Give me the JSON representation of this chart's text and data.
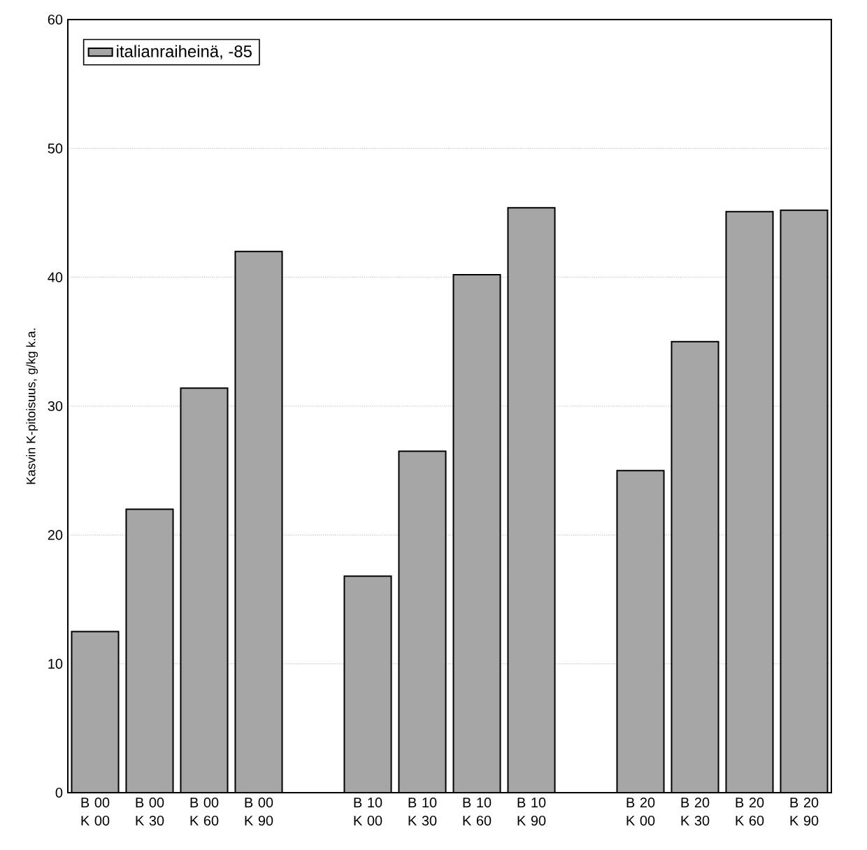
{
  "chart_data": {
    "type": "bar",
    "ylabel": "Kasvin K-pitoisuus, g/kg k.a.",
    "categories": [
      "B 00 K 00",
      "B 00 K 30",
      "B 00 K 60",
      "B 00 K 90",
      null,
      "B 10 K 00",
      "B 10 K 30",
      "B 10 K 60",
      "B 10 K 90",
      null,
      "B 20 K 00",
      "B 20 K 30",
      "B 20 K 60",
      "B 20 K 90"
    ],
    "series": [
      {
        "name": "italianraiheinä, -85",
        "color": "#a6a6a6",
        "values": [
          12.5,
          22.0,
          31.4,
          42.0,
          null,
          16.8,
          26.5,
          40.2,
          45.4,
          null,
          25.0,
          35.0,
          45.1,
          45.2
        ]
      }
    ],
    "ylim": [
      0,
      60
    ],
    "yticks": [
      0,
      10,
      20,
      30,
      40,
      50,
      60
    ],
    "grid": "y",
    "legend": "top left"
  }
}
